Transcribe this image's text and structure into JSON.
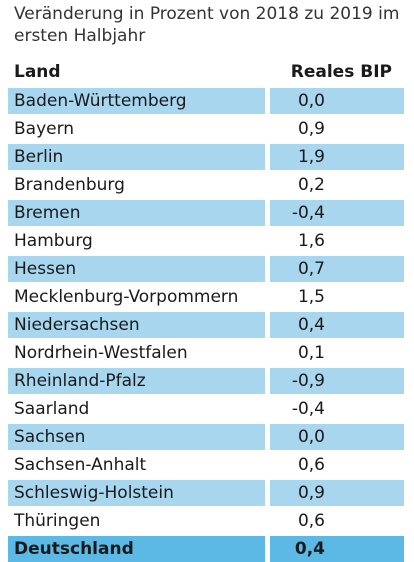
{
  "subtitle": "Veränderung in Prozent von 2018 zu 2019 im ersten Halbjahr",
  "colors": {
    "row_shade": "#a8d6ee",
    "total_shade": "#5cb9e6",
    "text": "#1a1a1a"
  },
  "chart_data": {
    "type": "table",
    "title": "",
    "columns": [
      "Land",
      "Reales BIP"
    ],
    "rows": [
      {
        "land": "Baden-Württemberg",
        "value": "0,0"
      },
      {
        "land": "Bayern",
        "value": "0,9"
      },
      {
        "land": "Berlin",
        "value": "1,9"
      },
      {
        "land": "Brandenburg",
        "value": "0,2"
      },
      {
        "land": "Bremen",
        "value": "-0,4"
      },
      {
        "land": "Hamburg",
        "value": "1,6"
      },
      {
        "land": "Hessen",
        "value": "0,7"
      },
      {
        "land": "Mecklenburg-Vorpommern",
        "value": "1,5"
      },
      {
        "land": "Niedersachsen",
        "value": "0,4"
      },
      {
        "land": "Nordrhein-Westfalen",
        "value": "0,1"
      },
      {
        "land": "Rheinland-Pfalz",
        "value": "-0,9"
      },
      {
        "land": "Saarland",
        "value": "-0,4"
      },
      {
        "land": "Sachsen",
        "value": "0,0"
      },
      {
        "land": "Sachsen-Anhalt",
        "value": "0,6"
      },
      {
        "land": "Schleswig-Holstein",
        "value": "0,9"
      },
      {
        "land": "Thüringen",
        "value": "0,6"
      },
      {
        "land": "Deutschland",
        "value": "0,4",
        "total": true
      }
    ]
  }
}
